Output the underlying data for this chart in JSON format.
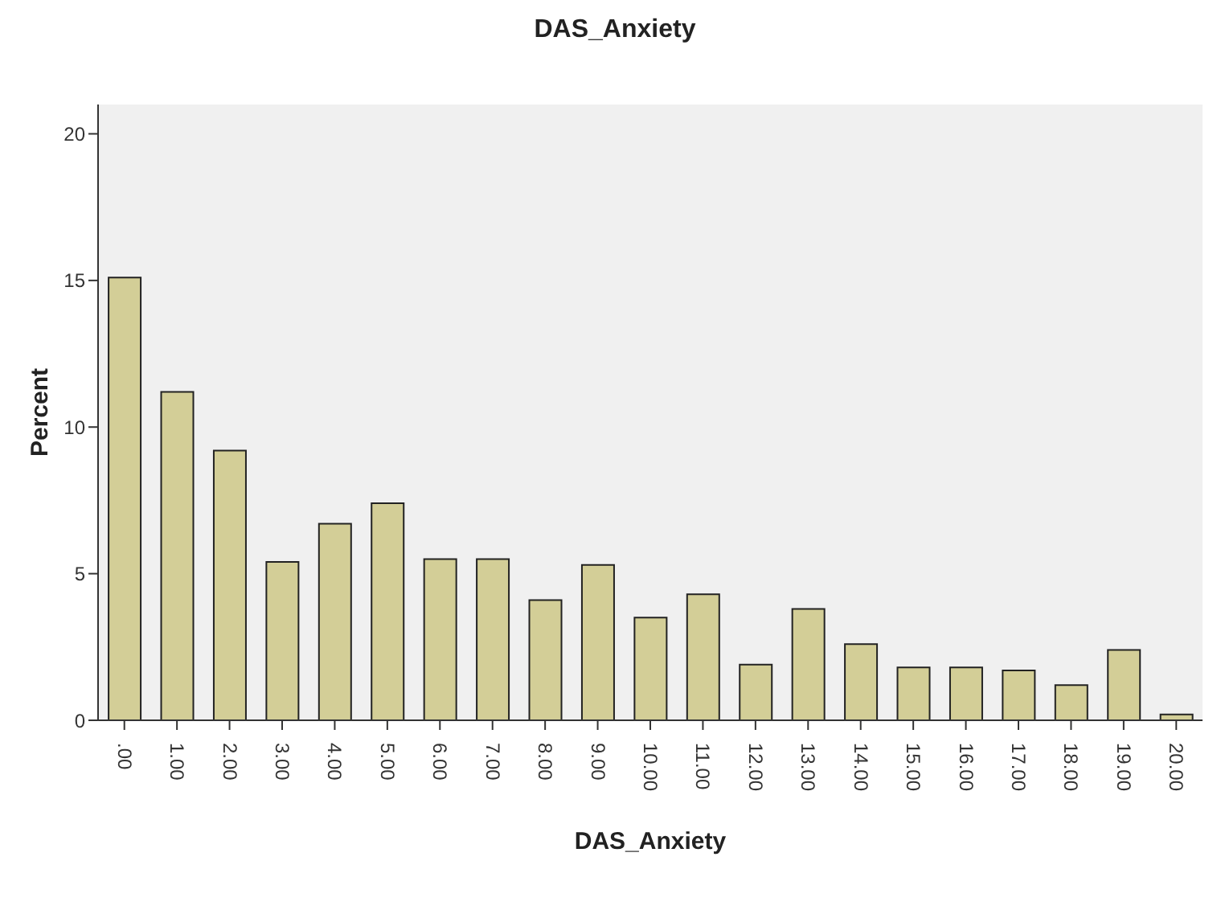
{
  "chart_data": {
    "type": "bar",
    "title": "DAS_Anxiety",
    "xlabel": "DAS_Anxiety",
    "ylabel": "Percent",
    "categories": [
      ".00",
      "1.00",
      "2.00",
      "3.00",
      "4.00",
      "5.00",
      "6.00",
      "7.00",
      "8.00",
      "9.00",
      "10.00",
      "11.00",
      "12.00",
      "13.00",
      "14.00",
      "15.00",
      "16.00",
      "17.00",
      "18.00",
      "19.00",
      "20.00"
    ],
    "values": [
      15.1,
      11.2,
      9.2,
      5.4,
      6.7,
      7.4,
      5.5,
      5.5,
      4.1,
      5.3,
      3.5,
      4.3,
      1.9,
      3.8,
      2.6,
      1.8,
      1.8,
      1.7,
      1.2,
      2.4,
      0.2
    ],
    "color": "#d3ce97",
    "ylim": [
      0,
      21
    ],
    "yticks": [
      0,
      5,
      10,
      15,
      20
    ],
    "grid": false,
    "legend": false
  }
}
